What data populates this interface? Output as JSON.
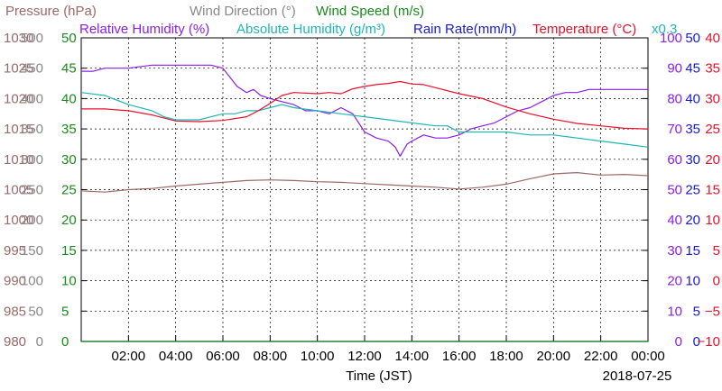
{
  "chart_data": {
    "type": "line",
    "header": {
      "line1": [
        {
          "text": "Pressure (hPa)",
          "color": "#9b6868"
        },
        {
          "text": "Wind Direction (°)",
          "color": "#888888"
        },
        {
          "text": "Wind Speed (m/s)",
          "color": "#1a8a1a"
        }
      ],
      "line2": [
        {
          "text": "Relative Humidity (%)",
          "color": "#8b1fe8"
        },
        {
          "text": "Absolute Humidity (g/m³)",
          "color": "#1fb5b5"
        },
        {
          "text": "Rain Rate(mm/h)",
          "color": "#1a1acc"
        },
        {
          "text": "Temperature (°C)",
          "color": "#e8102a"
        },
        {
          "text": "x0.3",
          "color": "#1fb5b5"
        }
      ]
    },
    "xlabel": "Time (JST)",
    "date": "2018-07-25",
    "x_ticks": [
      "02:00",
      "04:00",
      "06:00",
      "08:00",
      "10:00",
      "12:00",
      "14:00",
      "16:00",
      "18:00",
      "20:00",
      "22:00",
      "00:00"
    ],
    "xlim_hours": [
      0,
      24
    ],
    "grid": true,
    "axes": [
      {
        "id": "pressure",
        "side": "left",
        "color": "#9b6868",
        "ticks": [
          "980",
          "985",
          "990",
          "995",
          "1000",
          "1005",
          "1010",
          "1015",
          "1020",
          "1025",
          "1030"
        ],
        "min": 980,
        "max": 1030
      },
      {
        "id": "wind_direction",
        "side": "left",
        "color": "#888888",
        "ticks": [
          "0",
          "50",
          "100",
          "150",
          "200",
          "250",
          "300",
          "350",
          "400",
          "450",
          "500"
        ],
        "min": 0,
        "max": 500
      },
      {
        "id": "wind_speed",
        "side": "left",
        "color": "#1a8a1a",
        "ticks": [
          "0",
          "5",
          "10",
          "15",
          "20",
          "25",
          "30",
          "35",
          "40",
          "45",
          "50"
        ],
        "min": 0,
        "max": 50
      },
      {
        "id": "humidity",
        "side": "right",
        "color": "#8b1fe8",
        "ticks": [
          "0",
          "10",
          "20",
          "30",
          "40",
          "50",
          "60",
          "70",
          "80",
          "90",
          "100"
        ],
        "min": 0,
        "max": 100
      },
      {
        "id": "rain_rate",
        "side": "right",
        "color": "#1a1acc",
        "ticks": [
          "0",
          "5",
          "10",
          "15",
          "20",
          "25",
          "30",
          "35",
          "40",
          "45",
          "50"
        ],
        "min": 0,
        "max": 50
      },
      {
        "id": "temperature",
        "side": "right",
        "color": "#e8102a",
        "ticks": [
          "−10",
          "−5",
          "0",
          "5",
          "10",
          "15",
          "20",
          "25",
          "30",
          "35",
          "40"
        ],
        "min": -10,
        "max": 40
      }
    ],
    "series": [
      {
        "name": "Relative Humidity",
        "axis": "humidity",
        "color": "#8b1fe8",
        "x": [
          0,
          0.5,
          1,
          2,
          3,
          4,
          5,
          5.5,
          6,
          6.3,
          6.6,
          7,
          7.3,
          7.6,
          8,
          8.5,
          9,
          9.5,
          10,
          10.5,
          11,
          11.5,
          12,
          12.5,
          13,
          13.3,
          13.5,
          13.8,
          14,
          14.5,
          15,
          15.5,
          16,
          16.5,
          17,
          17.5,
          18,
          18.5,
          19,
          19.5,
          20,
          20.5,
          21,
          21.5,
          22,
          22.5,
          23,
          23.5,
          24
        ],
        "y": [
          89,
          89,
          90,
          90,
          91,
          91,
          91,
          91,
          90,
          87,
          84,
          82,
          83,
          81,
          80,
          79,
          78,
          76,
          76,
          75,
          77,
          75,
          69,
          67,
          66,
          64,
          61,
          65,
          66,
          68,
          67,
          67,
          68,
          70,
          71,
          72,
          74,
          76,
          77,
          79,
          81,
          82,
          82,
          83,
          83,
          83,
          83,
          83,
          83
        ]
      },
      {
        "name": "Absolute Humidity",
        "axis": "wind_speed",
        "color": "#1fb5b5",
        "x": [
          0,
          1,
          2,
          3,
          3.5,
          4,
          4.5,
          5,
          5.5,
          6,
          6.5,
          7,
          7.5,
          8,
          8.5,
          9,
          10,
          11,
          12,
          13,
          14,
          15,
          15.5,
          16,
          17,
          18,
          19,
          20,
          21,
          22,
          23,
          24
        ],
        "y": [
          41,
          40.5,
          39,
          38,
          37,
          36.5,
          36.5,
          36.5,
          37,
          37.5,
          37.5,
          38,
          38,
          38.5,
          39,
          38.5,
          38,
          37.5,
          37,
          36.5,
          36,
          35.5,
          35.5,
          34.5,
          34.5,
          34.5,
          34,
          34,
          33.5,
          33,
          32.5,
          32
        ]
      },
      {
        "name": "Temperature",
        "axis": "temperature",
        "color": "#e8102a",
        "x": [
          0,
          1,
          2,
          3,
          4,
          5,
          6,
          7,
          7.5,
          8,
          8.5,
          9,
          10,
          10.5,
          11,
          11.5,
          12,
          12.5,
          13,
          13.5,
          14,
          14.5,
          15,
          16,
          17,
          18,
          19,
          20,
          21,
          22,
          23,
          24
        ],
        "y": [
          28.3,
          28.3,
          28.0,
          27.3,
          26.3,
          26.2,
          26.4,
          27.0,
          28.0,
          29.2,
          30.5,
          31.0,
          30.8,
          31.0,
          30.8,
          31.6,
          32.0,
          32.3,
          32.5,
          32.8,
          32.4,
          32.3,
          31.8,
          30.8,
          30.0,
          28.6,
          27.5,
          26.6,
          25.9,
          25.5,
          25.1,
          25.0
        ]
      },
      {
        "name": "Pressure",
        "axis": "pressure",
        "color": "#9b6868",
        "x": [
          0,
          1,
          2,
          3,
          4,
          5,
          6,
          7,
          8,
          9,
          10,
          11,
          12,
          13,
          14,
          15,
          16,
          17,
          18,
          19,
          20,
          21,
          22,
          23,
          24
        ],
        "y": [
          1004.8,
          1004.6,
          1005.0,
          1005.2,
          1005.6,
          1005.9,
          1006.2,
          1006.5,
          1006.6,
          1006.5,
          1006.3,
          1006.2,
          1006.0,
          1005.8,
          1005.6,
          1005.4,
          1005.1,
          1005.4,
          1005.9,
          1006.8,
          1007.6,
          1007.8,
          1007.4,
          1007.5,
          1007.3
        ]
      },
      {
        "name": "Rain Rate",
        "axis": "rain_rate",
        "color": "#1a1acc",
        "x": [
          0,
          24
        ],
        "y": [
          0,
          0
        ]
      },
      {
        "name": "Wind Speed",
        "axis": "wind_speed",
        "color": "#1a8a1a",
        "x": [
          0,
          24
        ],
        "y": [
          0,
          0
        ]
      }
    ]
  }
}
